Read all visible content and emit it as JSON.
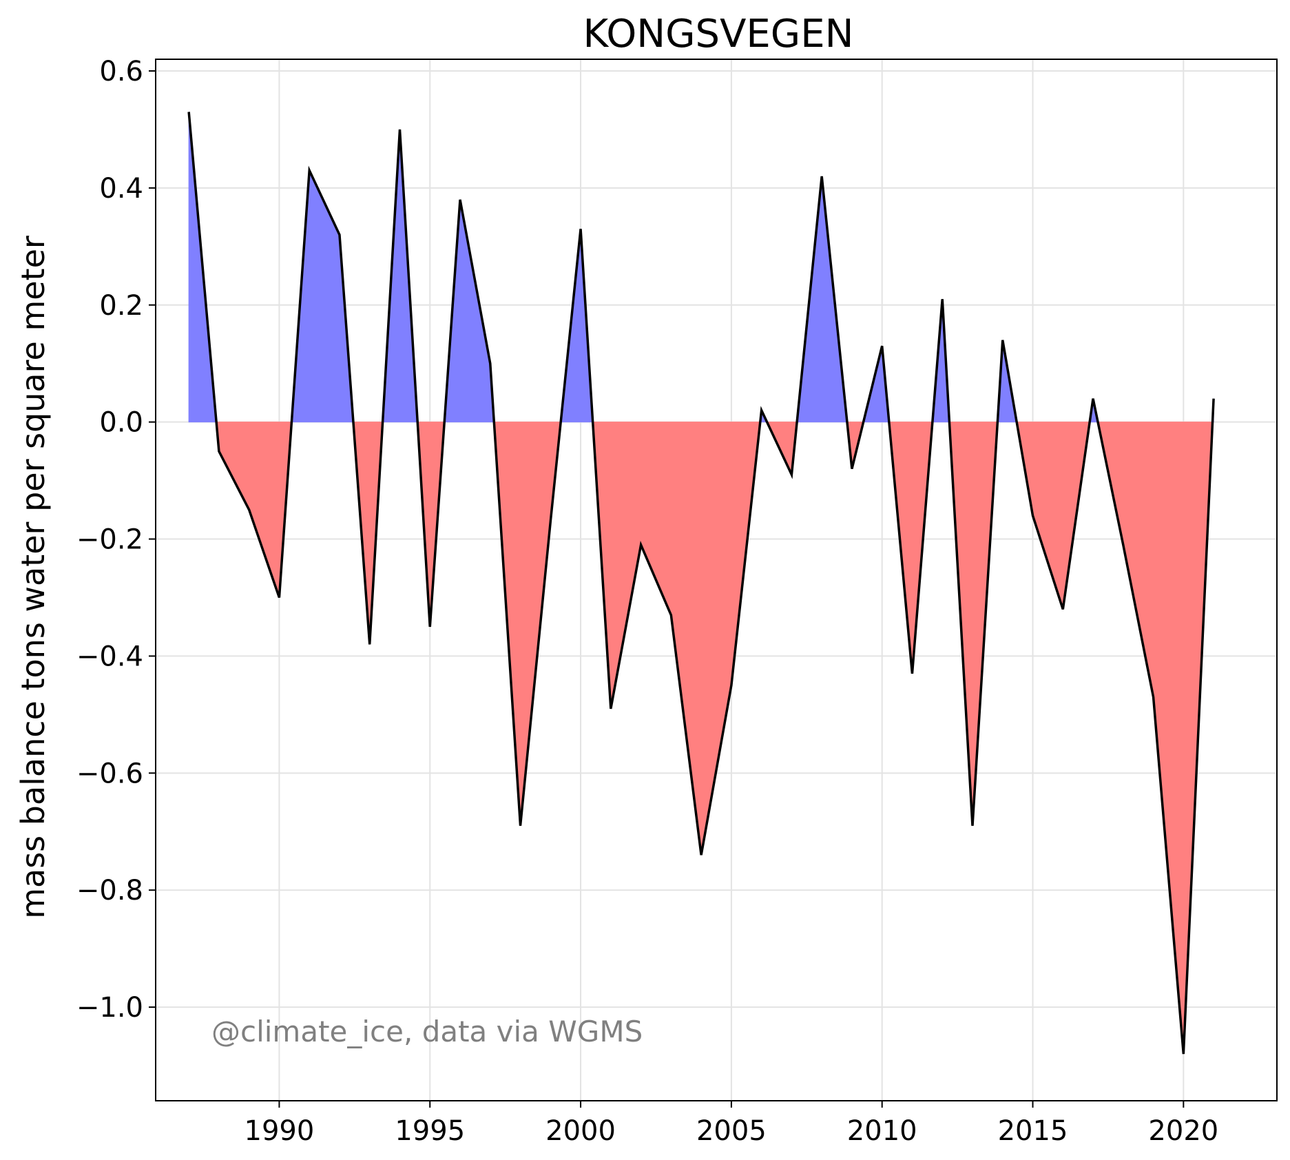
{
  "chart_data": {
    "type": "area",
    "title": "KONGSVEGEN",
    "xlabel": "",
    "ylabel": "mass balance tons water per square meter",
    "annotation": "@climate_ice, data via WGMS",
    "xlim": [
      1985.9,
      2023.1
    ],
    "ylim": [
      -1.16,
      0.62
    ],
    "xticks": [
      1990,
      1995,
      2000,
      2005,
      2010,
      2015,
      2020
    ],
    "yticks": [
      0.6,
      0.4,
      0.2,
      0.0,
      -0.2,
      -0.4,
      -0.6,
      -0.8,
      -1.0
    ],
    "ytick_labels": [
      "0.6",
      "0.4",
      "0.2",
      "0.0",
      "−0.2",
      "−0.4",
      "−0.6",
      "−0.8",
      "−1.0"
    ],
    "grid": true,
    "positive_color": "#8080ff",
    "negative_color": "#ff8080",
    "line_color": "#000000",
    "x": [
      1987,
      1988,
      1989,
      1990,
      1991,
      1992,
      1993,
      1994,
      1995,
      1996,
      1997,
      1998,
      1999,
      2000,
      2001,
      2002,
      2003,
      2004,
      2005,
      2006,
      2007,
      2008,
      2009,
      2010,
      2011,
      2012,
      2013,
      2014,
      2015,
      2016,
      2017,
      2018,
      2019,
      2020,
      2021
    ],
    "values": [
      0.53,
      -0.05,
      -0.15,
      -0.3,
      0.43,
      0.32,
      -0.38,
      0.5,
      -0.35,
      0.38,
      0.1,
      -0.69,
      -0.17,
      0.33,
      -0.49,
      -0.21,
      -0.33,
      -0.74,
      -0.45,
      0.02,
      -0.09,
      0.42,
      -0.08,
      0.13,
      -0.43,
      0.21,
      -0.69,
      0.14,
      -0.16,
      -0.32,
      0.04,
      -0.21,
      -0.47,
      -1.08,
      0.04
    ]
  }
}
